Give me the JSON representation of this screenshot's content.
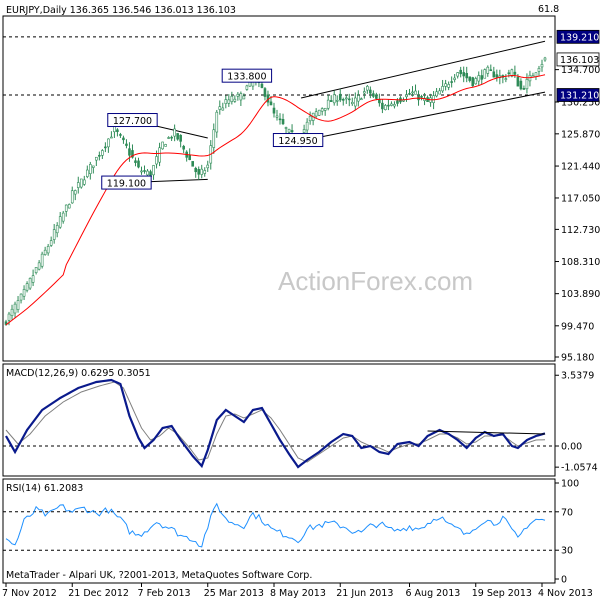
{
  "chart_data": [
    {
      "type": "candlestick",
      "panel": "price",
      "header": "EURJPY,Daily  136.365 136.546 136.013 136.103",
      "corner_value": "61.8",
      "watermark": "ActionForex.com",
      "ylim": [
        95.18,
        141.8
      ],
      "y_ticks": [
        {
          "value": 134.7,
          "label": "134.700"
        },
        {
          "value": 130.25,
          "label": "130.250"
        },
        {
          "value": 125.87,
          "label": "125.870"
        },
        {
          "value": 121.44,
          "label": "121.440"
        },
        {
          "value": 117.05,
          "label": "117.050"
        },
        {
          "value": 112.73,
          "label": "112.730"
        },
        {
          "value": 108.31,
          "label": "108.310"
        },
        {
          "value": 103.89,
          "label": "103.890"
        },
        {
          "value": 99.47,
          "label": "99.470"
        },
        {
          "value": 95.18,
          "label": "95.180"
        }
      ],
      "price_tags": [
        {
          "value": 139.21,
          "label": "139.210",
          "style": "highlight"
        },
        {
          "value": 136.103,
          "label": "136.103",
          "style": "current"
        },
        {
          "value": 131.21,
          "label": "131.210",
          "style": "highlight"
        }
      ],
      "horizontal_lines": [
        139.21,
        131.21
      ],
      "callouts": [
        {
          "x": 42,
          "value": 127.7,
          "label": "127.700"
        },
        {
          "x": 40,
          "value": 119.1,
          "label": "119.100"
        },
        {
          "x": 80,
          "value": 133.8,
          "label": "133.800"
        },
        {
          "x": 97,
          "value": 124.95,
          "label": "124.950"
        }
      ],
      "trendlines": [
        {
          "from": [
            42,
            127.7
          ],
          "to": [
            67,
            125.3
          ]
        },
        {
          "from": [
            42,
            119.2
          ],
          "to": [
            67,
            119.6
          ]
        },
        {
          "from": [
            98,
            130.8
          ],
          "to": [
            179,
            138.6
          ]
        },
        {
          "from": [
            98,
            124.9
          ],
          "to": [
            179,
            131.6
          ]
        }
      ],
      "moving_average_color": "#ff0000",
      "close_anchors": [
        [
          0,
          100.2
        ],
        [
          6,
          104.0
        ],
        [
          14,
          110.5
        ],
        [
          22,
          117.5
        ],
        [
          30,
          122.5
        ],
        [
          36,
          126.5
        ],
        [
          40,
          124.0
        ],
        [
          44,
          121.0
        ],
        [
          48,
          120.3
        ],
        [
          52,
          124.5
        ],
        [
          56,
          126.0
        ],
        [
          60,
          123.0
        ],
        [
          64,
          120.0
        ],
        [
          67,
          121.5
        ],
        [
          70,
          129.0
        ],
        [
          74,
          130.5
        ],
        [
          78,
          131.0
        ],
        [
          82,
          133.5
        ],
        [
          86,
          131.5
        ],
        [
          89,
          128.5
        ],
        [
          92,
          127.0
        ],
        [
          94,
          126.0
        ],
        [
          97,
          125.0
        ],
        [
          101,
          128.0
        ],
        [
          105,
          129.5
        ],
        [
          110,
          131.0
        ],
        [
          115,
          130.0
        ],
        [
          120,
          132.0
        ],
        [
          125,
          129.5
        ],
        [
          130,
          130.5
        ],
        [
          135,
          131.5
        ],
        [
          140,
          130.2
        ],
        [
          145,
          132.0
        ],
        [
          150,
          134.5
        ],
        [
          155,
          133.0
        ],
        [
          160,
          134.5
        ],
        [
          165,
          133.5
        ],
        [
          168,
          134.5
        ],
        [
          171,
          132.0
        ],
        [
          174,
          133.5
        ],
        [
          177,
          135.3
        ],
        [
          179,
          136.1
        ]
      ]
    },
    {
      "type": "line",
      "panel": "macd",
      "header": "MACD(12,26,9) 0.6295 0.3051",
      "ylim": [
        -1.3,
        3.9
      ],
      "y_ticks": [
        {
          "value": 3.5379,
          "label": "3.5379"
        },
        {
          "value": 0.0,
          "label": "0.00"
        },
        {
          "value": -1.0574,
          "label": "-1.0574"
        }
      ],
      "zero_line": 0,
      "series": [
        {
          "role": "macd",
          "color": "#0a1a8c",
          "anchors": [
            [
              0,
              0.5
            ],
            [
              3,
              -0.3
            ],
            [
              7,
              0.8
            ],
            [
              12,
              1.8
            ],
            [
              18,
              2.4
            ],
            [
              24,
              2.9
            ],
            [
              30,
              3.2
            ],
            [
              35,
              3.3
            ],
            [
              38,
              3.1
            ],
            [
              41,
              1.5
            ],
            [
              44,
              0.4
            ],
            [
              46,
              -0.1
            ],
            [
              49,
              0.3
            ],
            [
              52,
              0.9
            ],
            [
              55,
              1.0
            ],
            [
              58,
              0.3
            ],
            [
              62,
              -0.5
            ],
            [
              65,
              -1.0
            ],
            [
              67,
              -0.2
            ],
            [
              70,
              1.3
            ],
            [
              73,
              1.8
            ],
            [
              76,
              1.5
            ],
            [
              79,
              1.2
            ],
            [
              82,
              1.8
            ],
            [
              85,
              1.9
            ],
            [
              88,
              1.1
            ],
            [
              91,
              0.3
            ],
            [
              94,
              -0.4
            ],
            [
              97,
              -1.05
            ],
            [
              100,
              -0.7
            ],
            [
              104,
              -0.3
            ],
            [
              108,
              0.2
            ],
            [
              112,
              0.6
            ],
            [
              115,
              0.5
            ],
            [
              118,
              -0.1
            ],
            [
              121,
              0.0
            ],
            [
              124,
              -0.3
            ],
            [
              127,
              -0.4
            ],
            [
              130,
              0.1
            ],
            [
              134,
              0.2
            ],
            [
              137,
              0.0
            ],
            [
              140,
              0.5
            ],
            [
              144,
              0.8
            ],
            [
              147,
              0.6
            ],
            [
              150,
              0.3
            ],
            [
              153,
              -0.1
            ],
            [
              156,
              0.4
            ],
            [
              159,
              0.7
            ],
            [
              162,
              0.5
            ],
            [
              165,
              0.6
            ],
            [
              168,
              0.0
            ],
            [
              170,
              -0.1
            ],
            [
              173,
              0.3
            ],
            [
              176,
              0.5
            ],
            [
              179,
              0.63
            ]
          ]
        },
        {
          "role": "signal",
          "color": "#808080",
          "anchors": [
            [
              0,
              0.8
            ],
            [
              4,
              0.1
            ],
            [
              8,
              0.6
            ],
            [
              13,
              1.5
            ],
            [
              19,
              2.2
            ],
            [
              25,
              2.7
            ],
            [
              31,
              3.0
            ],
            [
              36,
              3.2
            ],
            [
              39,
              2.9
            ],
            [
              42,
              1.9
            ],
            [
              45,
              0.9
            ],
            [
              48,
              0.3
            ],
            [
              51,
              0.5
            ],
            [
              54,
              0.9
            ],
            [
              57,
              0.6
            ],
            [
              61,
              -0.1
            ],
            [
              64,
              -0.7
            ],
            [
              67,
              -0.6
            ],
            [
              70,
              0.6
            ],
            [
              73,
              1.5
            ],
            [
              76,
              1.6
            ],
            [
              79,
              1.4
            ],
            [
              82,
              1.6
            ],
            [
              85,
              1.8
            ],
            [
              88,
              1.4
            ],
            [
              91,
              0.8
            ],
            [
              94,
              0.1
            ],
            [
              97,
              -0.6
            ],
            [
              100,
              -0.8
            ],
            [
              104,
              -0.4
            ],
            [
              108,
              0.0
            ],
            [
              112,
              0.4
            ],
            [
              115,
              0.5
            ],
            [
              118,
              0.2
            ],
            [
              121,
              0.0
            ],
            [
              124,
              -0.1
            ],
            [
              127,
              -0.3
            ],
            [
              130,
              -0.1
            ],
            [
              134,
              0.1
            ],
            [
              137,
              0.1
            ],
            [
              140,
              0.3
            ],
            [
              144,
              0.6
            ],
            [
              147,
              0.6
            ],
            [
              150,
              0.4
            ],
            [
              153,
              0.1
            ],
            [
              156,
              0.2
            ],
            [
              159,
              0.5
            ],
            [
              162,
              0.5
            ],
            [
              165,
              0.55
            ],
            [
              168,
              0.2
            ],
            [
              170,
              0.0
            ],
            [
              173,
              0.15
            ],
            [
              176,
              0.3
            ],
            [
              179,
              0.31
            ]
          ]
        }
      ],
      "trendline": {
        "from": [
          140,
          0.75
        ],
        "to": [
          179,
          0.6
        ]
      }
    },
    {
      "type": "line",
      "panel": "rsi",
      "header": "RSI(14) 61.2083",
      "ylim": [
        0,
        100
      ],
      "y_ticks": [
        {
          "value": 100,
          "label": "100"
        },
        {
          "value": 70,
          "label": "70"
        },
        {
          "value": 30,
          "label": "30"
        },
        {
          "value": 0,
          "label": "0"
        }
      ],
      "level_lines": [
        70,
        30
      ],
      "series": [
        {
          "role": "rsi",
          "color": "#1e90ff",
          "anchors": [
            [
              0,
              42
            ],
            [
              3,
              35
            ],
            [
              6,
              60
            ],
            [
              10,
              72
            ],
            [
              14,
              66
            ],
            [
              18,
              76
            ],
            [
              22,
              70
            ],
            [
              26,
              74
            ],
            [
              30,
              68
            ],
            [
              34,
              72
            ],
            [
              38,
              62
            ],
            [
              41,
              50
            ],
            [
              44,
              45
            ],
            [
              47,
              52
            ],
            [
              50,
              60
            ],
            [
              53,
              55
            ],
            [
              56,
              50
            ],
            [
              59,
              44
            ],
            [
              62,
              42
            ],
            [
              65,
              35
            ],
            [
              67,
              55
            ],
            [
              70,
              78
            ],
            [
              73,
              62
            ],
            [
              76,
              58
            ],
            [
              79,
              56
            ],
            [
              82,
              68
            ],
            [
              85,
              62
            ],
            [
              88,
              52
            ],
            [
              91,
              48
            ],
            [
              94,
              45
            ],
            [
              97,
              40
            ],
            [
              100,
              52
            ],
            [
              104,
              56
            ],
            [
              108,
              58
            ],
            [
              112,
              55
            ],
            [
              115,
              50
            ],
            [
              118,
              48
            ],
            [
              121,
              55
            ],
            [
              124,
              58
            ],
            [
              127,
              52
            ],
            [
              130,
              50
            ],
            [
              134,
              55
            ],
            [
              137,
              52
            ],
            [
              140,
              58
            ],
            [
              144,
              66
            ],
            [
              147,
              56
            ],
            [
              150,
              52
            ],
            [
              153,
              45
            ],
            [
              156,
              55
            ],
            [
              159,
              62
            ],
            [
              162,
              58
            ],
            [
              165,
              64
            ],
            [
              168,
              50
            ],
            [
              170,
              42
            ],
            [
              173,
              56
            ],
            [
              176,
              62
            ],
            [
              179,
              61.2
            ]
          ]
        }
      ],
      "footer": "MetaTrader - Alpari UK, ?2001-2013, MetaQuotes Software Corp."
    }
  ],
  "x_axis": {
    "n_bars": 180,
    "labels": [
      {
        "bar": 0,
        "label": "7 Nov 2012"
      },
      {
        "bar": 22,
        "label": "21 Dec 2012"
      },
      {
        "bar": 45,
        "label": "7 Feb 2013"
      },
      {
        "bar": 67,
        "label": "25 Mar 2013"
      },
      {
        "bar": 89,
        "label": "8 May 2013"
      },
      {
        "bar": 111,
        "label": "21 Jun 2013"
      },
      {
        "bar": 134,
        "label": "6 Aug 2013"
      },
      {
        "bar": 156,
        "label": "19 Sep 2013"
      },
      {
        "bar": 178,
        "label": "4 Nov 2013"
      }
    ]
  },
  "colors": {
    "candle": "#2e8b57",
    "grid_dash": "#000000",
    "callout_border": "#000080",
    "tag_highlight_bg": "#000080",
    "tag_current_bg": "#ffffff"
  }
}
